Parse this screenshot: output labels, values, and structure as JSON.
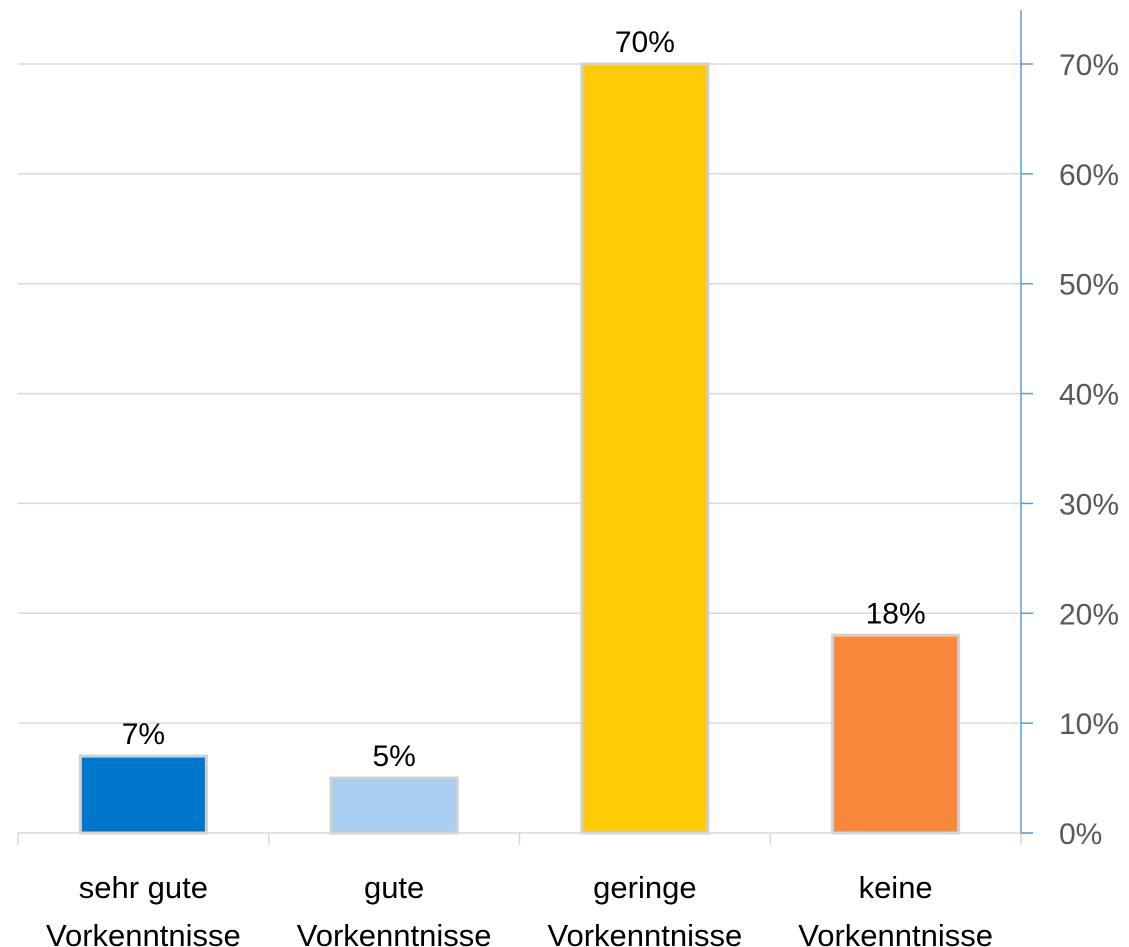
{
  "chart_data": {
    "type": "bar",
    "categories": [
      [
        "sehr gute",
        "Vorkenntnisse"
      ],
      [
        "gute",
        "Vorkenntnisse"
      ],
      [
        "geringe",
        "Vorkenntnisse"
      ],
      [
        "keine",
        "Vorkenntnisse"
      ]
    ],
    "values": [
      7,
      5,
      70,
      18
    ],
    "data_labels": [
      "7%",
      "5%",
      "70%",
      "18%"
    ],
    "colors": [
      "#0077CC",
      "#A9CFF2",
      "#FCCB05",
      "#F8873A"
    ],
    "title": "",
    "xlabel": "",
    "ylabel": "",
    "ylim": [
      0,
      70
    ],
    "yticks": [
      0,
      10,
      20,
      30,
      40,
      50,
      60,
      70
    ],
    "ytick_labels": [
      "0%",
      "10%",
      "20%",
      "30%",
      "40%",
      "50%",
      "60%",
      "70%"
    ],
    "y_axis_side": "right",
    "grid": true,
    "legend": "none",
    "gridline_color": "#D9D9D9",
    "axis_color": "#5B9BD5"
  }
}
